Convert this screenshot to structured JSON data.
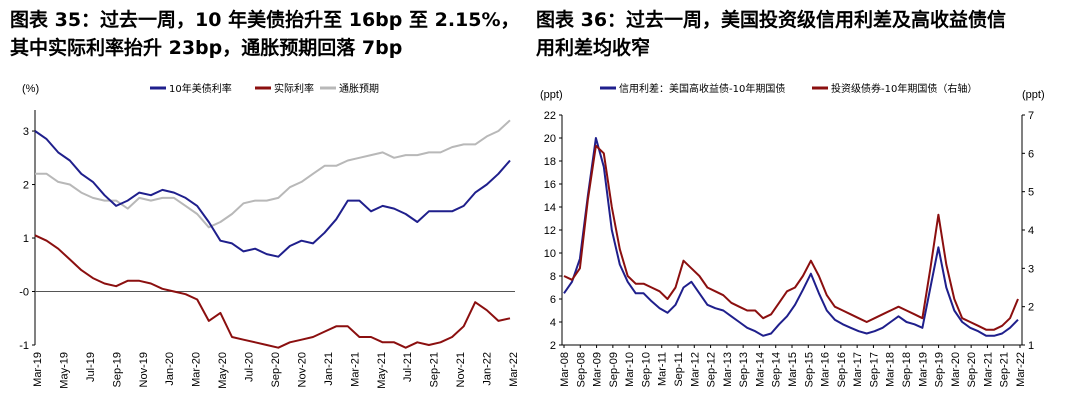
{
  "left_panel": {
    "title_line1": "图表 35：过去一周，10 年美债抬升至 16bp 至 2.15%，",
    "title_line2": "其中实际利率抬升 23bp，通胀预期回落 7bp"
  },
  "right_panel": {
    "title_line1": "图表 36：过去一周，美国投资级信用利差及高收益债信",
    "title_line2": "用利差均收窄"
  },
  "colors": {
    "navy": "#1f1f8c",
    "maroon": "#8b0f0f",
    "gray": "#b8b8b8"
  },
  "chart_data": [
    {
      "type": "line",
      "unit_label": "(%)",
      "ylim": [
        -1,
        3.3
      ],
      "yticks": [
        "3",
        "2",
        "1",
        "-0",
        "-1"
      ],
      "xticks": [
        "Mar-19",
        "May-19",
        "Jul-19",
        "Sep-19",
        "Nov-19",
        "Jan-20",
        "Mar-20",
        "May-20",
        "Jul-20",
        "Sep-20",
        "Nov-20",
        "Jan-21",
        "Mar-21",
        "May-21",
        "Jul-21",
        "Sep-21",
        "Nov-21",
        "Jan-22",
        "Mar-22"
      ],
      "series": [
        {
          "name": "10年美债利率",
          "color": "#1f1f8c",
          "values": [
            3.0,
            2.85,
            2.6,
            2.45,
            2.2,
            2.05,
            1.8,
            1.6,
            1.7,
            1.85,
            1.8,
            1.9,
            1.85,
            1.75,
            1.6,
            1.3,
            0.95,
            0.9,
            0.75,
            0.8,
            0.7,
            0.65,
            0.85,
            0.95,
            0.9,
            1.1,
            1.35,
            1.7,
            1.7,
            1.5,
            1.6,
            1.55,
            1.45,
            1.3,
            1.5,
            1.5,
            1.5,
            1.6,
            1.85,
            2.0,
            2.2,
            2.45
          ]
        },
        {
          "name": "实际利率",
          "color": "#8b0f0f",
          "values": [
            1.05,
            0.95,
            0.8,
            0.6,
            0.4,
            0.25,
            0.15,
            0.1,
            0.2,
            0.2,
            0.15,
            0.05,
            0.0,
            -0.05,
            -0.15,
            -0.55,
            -0.4,
            -0.85,
            -0.9,
            -0.95,
            -1.0,
            -1.05,
            -0.95,
            -0.9,
            -0.85,
            -0.75,
            -0.65,
            -0.65,
            -0.85,
            -0.85,
            -0.95,
            -0.95,
            -1.05,
            -0.95,
            -1.0,
            -0.95,
            -0.85,
            -0.65,
            -0.2,
            -0.35,
            -0.55,
            -0.5
          ]
        },
        {
          "name": "通胀预期",
          "color": "#b8b8b8",
          "values": [
            2.2,
            2.2,
            2.05,
            2.0,
            1.85,
            1.75,
            1.7,
            1.7,
            1.55,
            1.75,
            1.7,
            1.75,
            1.75,
            1.6,
            1.45,
            1.2,
            1.3,
            1.45,
            1.65,
            1.7,
            1.7,
            1.75,
            1.95,
            2.05,
            2.2,
            2.35,
            2.35,
            2.45,
            2.5,
            2.55,
            2.6,
            2.5,
            2.55,
            2.55,
            2.6,
            2.6,
            2.7,
            2.75,
            2.75,
            2.9,
            3.0,
            3.2
          ]
        }
      ]
    },
    {
      "type": "line",
      "unit_left": "(ppt)",
      "unit_right": "(ppt)",
      "ylim_left": [
        2,
        22
      ],
      "ylim_right": [
        1,
        7
      ],
      "yticks_left": [
        "22",
        "20",
        "18",
        "16",
        "14",
        "12",
        "10",
        "8",
        "6",
        "4",
        "2"
      ],
      "yticks_right": [
        "7",
        "6",
        "5",
        "4",
        "3",
        "2",
        "1"
      ],
      "xticks": [
        "Mar-08",
        "Sep-08",
        "Mar-09",
        "Sep-09",
        "Mar-10",
        "Sep-10",
        "Mar-11",
        "Sep-11",
        "Mar-12",
        "Sep-12",
        "Mar-13",
        "Sep-13",
        "Mar-14",
        "Sep-14",
        "Mar-15",
        "Sep-15",
        "Mar-16",
        "Sep-16",
        "Mar-17",
        "Sep-17",
        "Mar-18",
        "Sep-18",
        "Mar-19",
        "Sep-19",
        "Mar-20",
        "Sep-20",
        "Mar-21",
        "Sep-21",
        "Mar-22"
      ],
      "series": [
        {
          "name": "信用利差：美国高收益债-10年期国债",
          "axis": "left",
          "color": "#1f1f8c",
          "values": [
            6.5,
            7.5,
            9.5,
            15,
            20,
            17.5,
            12,
            9,
            7.5,
            6.5,
            6.5,
            5.8,
            5.2,
            4.8,
            5.5,
            7.0,
            7.5,
            6.5,
            5.5,
            5.2,
            5.0,
            4.5,
            4.0,
            3.5,
            3.2,
            2.8,
            3.0,
            3.8,
            4.5,
            5.5,
            6.8,
            8.2,
            6.5,
            5.0,
            4.2,
            3.8,
            3.5,
            3.2,
            3.0,
            3.2,
            3.5,
            4.0,
            4.5,
            4.0,
            3.8,
            3.5,
            7.0,
            10.5,
            7.0,
            5.0,
            4.0,
            3.5,
            3.2,
            2.8,
            2.8,
            3.0,
            3.5,
            4.2
          ]
        },
        {
          "name": "投资级债券-10年期国债（右轴）",
          "axis": "right",
          "color": "#8b0f0f",
          "values": [
            2.8,
            2.7,
            3.0,
            4.8,
            6.2,
            6.0,
            4.6,
            3.5,
            2.8,
            2.6,
            2.6,
            2.5,
            2.4,
            2.2,
            2.5,
            3.2,
            3.0,
            2.8,
            2.5,
            2.4,
            2.3,
            2.1,
            2.0,
            1.9,
            1.9,
            1.7,
            1.8,
            2.1,
            2.4,
            2.5,
            2.8,
            3.2,
            2.8,
            2.3,
            2.0,
            1.9,
            1.8,
            1.7,
            1.6,
            1.7,
            1.8,
            1.9,
            2.0,
            1.9,
            1.8,
            1.7,
            3.0,
            4.4,
            3.1,
            2.2,
            1.7,
            1.6,
            1.5,
            1.4,
            1.4,
            1.5,
            1.7,
            2.2
          ]
        }
      ]
    }
  ]
}
